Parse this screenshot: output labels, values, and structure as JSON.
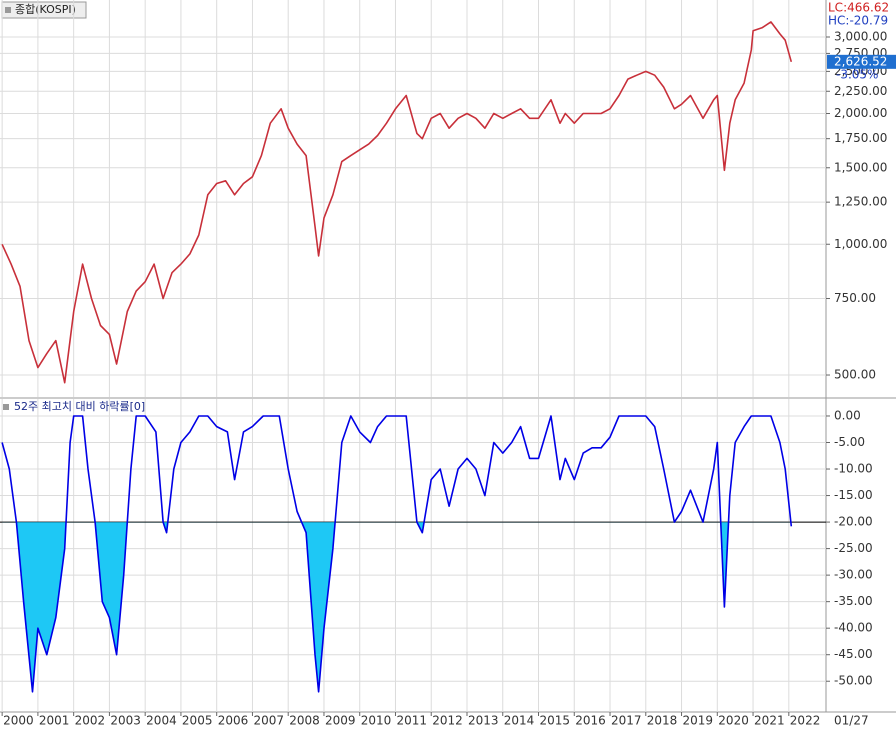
{
  "date_label": "01/27",
  "chart_data": [
    {
      "type": "line",
      "title": "종합(KOSPI)",
      "log_scale": true,
      "grid": true,
      "annotations": [
        "LC:466.62",
        "HC:-20.79"
      ],
      "last_label": "2,626.52",
      "change_label": "-3.05%",
      "xlim": [
        1999.94,
        2023.04
      ],
      "ylim": [
        445,
        3650
      ],
      "yticks": [
        {
          "value": 500,
          "label": "500.00"
        },
        {
          "value": 750,
          "label": "750.00"
        },
        {
          "value": 1000,
          "label": "1,000.00"
        },
        {
          "value": 1250,
          "label": "1,250.00"
        },
        {
          "value": 1500,
          "label": "1,500.00"
        },
        {
          "value": 1750,
          "label": "1,750.00"
        },
        {
          "value": 2000,
          "label": "2,000.00"
        },
        {
          "value": 2250,
          "label": "2,250.00"
        },
        {
          "value": 2500,
          "label": "2,500.00"
        },
        {
          "value": 2750,
          "label": "2,750.00"
        },
        {
          "value": 3000,
          "label": "3,000.00"
        }
      ],
      "series": [
        {
          "color": "#c8303a",
          "x": [
            2000.0,
            2000.25,
            2000.5,
            2000.75,
            2001.0,
            2001.25,
            2001.5,
            2001.75,
            2002.0,
            2002.25,
            2002.5,
            2002.75,
            2003.0,
            2003.2,
            2003.5,
            2003.75,
            2004.0,
            2004.25,
            2004.5,
            2004.75,
            2005.0,
            2005.25,
            2005.5,
            2005.75,
            2006.0,
            2006.25,
            2006.5,
            2006.75,
            2007.0,
            2007.25,
            2007.5,
            2007.8,
            2008.0,
            2008.25,
            2008.5,
            2008.75,
            2008.85,
            2009.0,
            2009.25,
            2009.5,
            2009.75,
            2010.0,
            2010.25,
            2010.5,
            2010.75,
            2011.0,
            2011.3,
            2011.6,
            2011.75,
            2012.0,
            2012.25,
            2012.5,
            2012.75,
            2013.0,
            2013.25,
            2013.5,
            2013.75,
            2014.0,
            2014.25,
            2014.5,
            2014.75,
            2015.0,
            2015.35,
            2015.6,
            2015.75,
            2016.0,
            2016.25,
            2016.5,
            2016.75,
            2017.0,
            2017.25,
            2017.5,
            2017.75,
            2018.0,
            2018.25,
            2018.5,
            2018.8,
            2019.0,
            2019.25,
            2019.6,
            2019.9,
            2020.0,
            2020.2,
            2020.35,
            2020.5,
            2020.75,
            2020.95,
            2021.0,
            2021.25,
            2021.5,
            2021.75,
            2021.9,
            2022.07
          ],
          "values": [
            1000,
            900,
            800,
            600,
            520,
            560,
            600,
            480,
            700,
            900,
            750,
            650,
            620,
            530,
            700,
            780,
            820,
            900,
            750,
            860,
            900,
            950,
            1050,
            1300,
            1380,
            1400,
            1300,
            1380,
            1430,
            1600,
            1900,
            2050,
            1850,
            1700,
            1600,
            1100,
            940,
            1150,
            1300,
            1550,
            1600,
            1650,
            1700,
            1780,
            1900,
            2050,
            2200,
            1800,
            1750,
            1950,
            2000,
            1850,
            1950,
            2000,
            1950,
            1850,
            2000,
            1950,
            2000,
            2050,
            1950,
            1950,
            2150,
            1900,
            2000,
            1900,
            2000,
            2000,
            2000,
            2050,
            2200,
            2400,
            2450,
            2500,
            2450,
            2300,
            2050,
            2100,
            2200,
            1950,
            2150,
            2200,
            1480,
            1900,
            2150,
            2350,
            2800,
            3100,
            3150,
            3250,
            3050,
            2950,
            2630
          ]
        }
      ]
    },
    {
      "type": "line",
      "title": "52주 최고치 대비 하락률[0]",
      "grid": true,
      "reference_line": -20,
      "fill_color": "#1ec8f5",
      "xlim": [
        1999.94,
        2023.04
      ],
      "ylim": [
        -55.8,
        3.2
      ],
      "xticks": [
        2000,
        2001,
        2002,
        2003,
        2004,
        2005,
        2006,
        2007,
        2008,
        2009,
        2010,
        2011,
        2012,
        2013,
        2014,
        2015,
        2016,
        2017,
        2018,
        2019,
        2020,
        2021,
        2022
      ],
      "yticks": [
        {
          "value": 0,
          "label": "0.00"
        },
        {
          "value": -5,
          "label": "-5.00"
        },
        {
          "value": -10,
          "label": "-10.00"
        },
        {
          "value": -15,
          "label": "-15.00"
        },
        {
          "value": -20,
          "label": "-20.00"
        },
        {
          "value": -25,
          "label": "-25.00"
        },
        {
          "value": -30,
          "label": "-30.00"
        },
        {
          "value": -35,
          "label": "-35.00"
        },
        {
          "value": -40,
          "label": "-40.00"
        },
        {
          "value": -45,
          "label": "-45.00"
        },
        {
          "value": -50,
          "label": "-50.00"
        }
      ],
      "series": [
        {
          "color": "#0000e6",
          "x": [
            2000.0,
            2000.2,
            2000.4,
            2000.6,
            2000.85,
            2001.0,
            2001.25,
            2001.5,
            2001.75,
            2001.9,
            2002.0,
            2002.25,
            2002.4,
            2002.6,
            2002.8,
            2003.0,
            2003.2,
            2003.4,
            2003.6,
            2003.75,
            2004.0,
            2004.3,
            2004.5,
            2004.6,
            2004.8,
            2005.0,
            2005.25,
            2005.5,
            2005.75,
            2006.0,
            2006.3,
            2006.5,
            2006.75,
            2007.0,
            2007.3,
            2007.6,
            2007.75,
            2008.0,
            2008.25,
            2008.5,
            2008.75,
            2008.85,
            2009.0,
            2009.25,
            2009.5,
            2009.75,
            2010.0,
            2010.3,
            2010.5,
            2010.75,
            2011.0,
            2011.3,
            2011.6,
            2011.75,
            2012.0,
            2012.25,
            2012.5,
            2012.75,
            2013.0,
            2013.25,
            2013.5,
            2013.75,
            2014.0,
            2014.25,
            2014.5,
            2014.75,
            2015.0,
            2015.35,
            2015.6,
            2015.75,
            2016.0,
            2016.25,
            2016.5,
            2016.75,
            2017.0,
            2017.25,
            2017.5,
            2017.75,
            2018.0,
            2018.25,
            2018.5,
            2018.8,
            2019.0,
            2019.25,
            2019.6,
            2019.9,
            2020.0,
            2020.2,
            2020.35,
            2020.5,
            2020.75,
            2020.95,
            2021.0,
            2021.25,
            2021.5,
            2021.75,
            2021.9,
            2022.07
          ],
          "values": [
            -5,
            -10,
            -20,
            -35,
            -52,
            -40,
            -45,
            -38,
            -25,
            -5,
            0,
            0,
            -10,
            -20,
            -35,
            -38,
            -45,
            -30,
            -10,
            0,
            0,
            -3,
            -20,
            -22,
            -10,
            -5,
            -3,
            0,
            0,
            -2,
            -3,
            -12,
            -3,
            -2,
            0,
            0,
            0,
            -10,
            -18,
            -22,
            -45,
            -52,
            -40,
            -25,
            -5,
            0,
            -3,
            -5,
            -2,
            0,
            0,
            0,
            -20,
            -22,
            -12,
            -10,
            -17,
            -10,
            -8,
            -10,
            -15,
            -5,
            -7,
            -5,
            -2,
            -8,
            -8,
            0,
            -12,
            -8,
            -12,
            -7,
            -6,
            -6,
            -4,
            0,
            0,
            0,
            0,
            -2,
            -10,
            -20,
            -18,
            -14,
            -20,
            -10,
            -5,
            -36,
            -15,
            -5,
            -2,
            0,
            0,
            0,
            0,
            -5,
            -10,
            -20.79
          ]
        }
      ]
    }
  ]
}
